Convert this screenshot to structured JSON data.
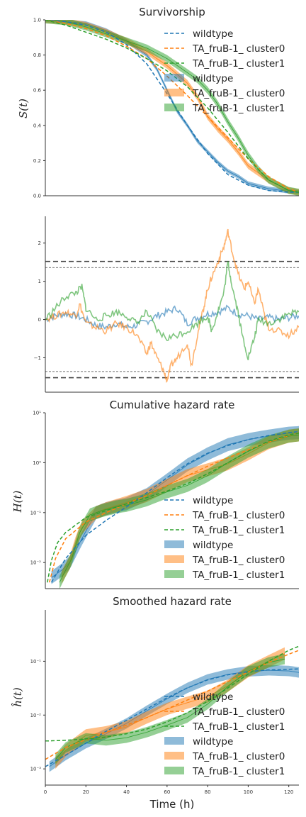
{
  "colors": {
    "wildtype": "#1f77b4",
    "cluster0": "#ff7f0e",
    "cluster1": "#2ca02c",
    "reference_lines": "#444444"
  },
  "legend_labels": [
    "wildtype",
    "TA_fruB-1_ cluster0",
    "TA_fruB-1_ cluster1"
  ],
  "shared_xaxis": {
    "label": "Time (h)",
    "xlim": [
      0,
      125
    ],
    "ticks": [
      "0",
      "20",
      "40",
      "60",
      "80",
      "100",
      "120"
    ]
  },
  "chart_data": [
    {
      "type": "line",
      "title": "Survivorship",
      "ylabel": "S(t)",
      "xlim": [
        0,
        125
      ],
      "ylim": [
        0,
        1.0
      ],
      "yticks": [
        "0.0",
        "0.2",
        "0.4",
        "0.6",
        "0.8",
        "1.0"
      ],
      "legend": "top-right",
      "series": [
        {
          "name": "wildtype",
          "style": "dashed-fit",
          "x": [
            0,
            10,
            20,
            30,
            40,
            50,
            60,
            70,
            80,
            90,
            100,
            110,
            120,
            125
          ],
          "values": [
            1.0,
            0.99,
            0.97,
            0.93,
            0.86,
            0.75,
            0.58,
            0.4,
            0.24,
            0.12,
            0.06,
            0.03,
            0.02,
            0.02
          ]
        },
        {
          "name": "TA_fruB-1_ cluster0",
          "style": "dashed-fit",
          "x": [
            0,
            10,
            20,
            30,
            40,
            50,
            60,
            70,
            80,
            90,
            100,
            110,
            120,
            125
          ],
          "values": [
            1.0,
            0.98,
            0.95,
            0.91,
            0.85,
            0.78,
            0.68,
            0.57,
            0.45,
            0.33,
            0.21,
            0.11,
            0.04,
            0.02
          ]
        },
        {
          "name": "TA_fruB-1_ cluster1",
          "style": "dashed-fit",
          "x": [
            0,
            10,
            20,
            30,
            40,
            50,
            60,
            70,
            80,
            90,
            100,
            110,
            120,
            125
          ],
          "values": [
            1.0,
            0.97,
            0.93,
            0.89,
            0.84,
            0.78,
            0.71,
            0.62,
            0.5,
            0.36,
            0.21,
            0.09,
            0.03,
            0.02
          ]
        },
        {
          "name": "wildtype",
          "style": "band",
          "x": [
            0,
            10,
            20,
            30,
            40,
            50,
            55,
            60,
            65,
            70,
            75,
            80,
            85,
            90,
            95,
            100,
            110,
            120,
            125
          ],
          "values": [
            1.0,
            0.99,
            0.98,
            0.94,
            0.88,
            0.8,
            0.72,
            0.6,
            0.48,
            0.4,
            0.31,
            0.25,
            0.19,
            0.14,
            0.11,
            0.07,
            0.04,
            0.025,
            0.02
          ],
          "band_halfwidth": 0.012
        },
        {
          "name": "TA_fruB-1_ cluster0",
          "style": "band",
          "x": [
            0,
            10,
            20,
            30,
            40,
            50,
            60,
            70,
            75,
            80,
            85,
            90,
            95,
            100,
            110,
            120,
            125
          ],
          "values": [
            1.0,
            0.99,
            0.97,
            0.93,
            0.88,
            0.82,
            0.74,
            0.64,
            0.56,
            0.45,
            0.38,
            0.32,
            0.25,
            0.17,
            0.09,
            0.03,
            0.02
          ],
          "band_halfwidth": 0.018
        },
        {
          "name": "TA_fruB-1_ cluster1",
          "style": "band",
          "x": [
            0,
            10,
            20,
            30,
            40,
            50,
            60,
            65,
            70,
            75,
            80,
            85,
            90,
            95,
            100,
            105,
            110,
            120,
            125
          ],
          "values": [
            1.0,
            0.99,
            0.96,
            0.92,
            0.88,
            0.84,
            0.78,
            0.74,
            0.7,
            0.66,
            0.6,
            0.52,
            0.42,
            0.33,
            0.23,
            0.15,
            0.09,
            0.03,
            0.02
          ],
          "band_halfwidth": 0.02
        }
      ]
    },
    {
      "type": "line",
      "title": "",
      "ylabel": "",
      "xlim": [
        0,
        125
      ],
      "ylim": [
        -1.9,
        2.7
      ],
      "yticks": [
        "−1",
        "0",
        "1",
        "2"
      ],
      "reference_lines": {
        "thick_dashed": [
          1.52,
          -1.52
        ],
        "thin_dashed": [
          1.36,
          -1.36
        ]
      },
      "series": [
        {
          "name": "wildtype",
          "x": [
            0,
            5,
            10,
            15,
            20,
            25,
            30,
            35,
            40,
            45,
            50,
            55,
            60,
            65,
            70,
            75,
            80,
            85,
            90,
            95,
            100,
            105,
            110,
            115,
            120,
            125
          ],
          "values": [
            0,
            0.1,
            0.15,
            0.1,
            0.0,
            -0.15,
            -0.2,
            -0.1,
            -0.2,
            -0.15,
            -0.05,
            0.1,
            0.2,
            0.3,
            -0.1,
            0.05,
            0.15,
            0.2,
            0.3,
            0.15,
            0.1,
            0.0,
            0.05,
            0.0,
            0.05,
            0.1
          ]
        },
        {
          "name": "TA_fruB-1_ cluster0",
          "x": [
            0,
            5,
            10,
            15,
            17,
            20,
            25,
            30,
            35,
            40,
            45,
            50,
            52,
            55,
            58,
            60,
            62,
            65,
            70,
            72,
            75,
            78,
            80,
            82,
            85,
            88,
            90,
            92,
            95,
            98,
            100,
            103,
            105,
            108,
            110,
            115,
            120,
            125
          ],
          "values": [
            0,
            0.1,
            0.2,
            0.1,
            0.4,
            -0.1,
            -0.2,
            -0.3,
            -0.1,
            -0.2,
            -0.4,
            -0.9,
            -0.6,
            -1.0,
            -1.3,
            -1.6,
            -1.2,
            -1.0,
            -0.6,
            -1.2,
            -0.4,
            0.3,
            0.8,
            1.1,
            1.5,
            1.9,
            2.3,
            1.8,
            1.2,
            0.8,
            1.0,
            0.4,
            0.8,
            0.1,
            -0.2,
            -0.3,
            -0.4,
            -0.2
          ]
        },
        {
          "name": "TA_fruB-1_ cluster1",
          "x": [
            0,
            5,
            10,
            15,
            18,
            20,
            25,
            30,
            35,
            40,
            45,
            50,
            55,
            60,
            65,
            70,
            75,
            80,
            82,
            85,
            88,
            90,
            92,
            95,
            97,
            100,
            103,
            105,
            110,
            115,
            120,
            125
          ],
          "values": [
            0,
            0.3,
            0.6,
            0.7,
            0.85,
            0.3,
            0.0,
            0.1,
            0.2,
            0.1,
            -0.1,
            0.2,
            -0.3,
            -0.5,
            -0.4,
            -0.3,
            -0.1,
            0.1,
            -0.3,
            0.2,
            0.7,
            1.5,
            0.9,
            0.2,
            -0.4,
            -1.0,
            -0.5,
            0.0,
            -0.1,
            0.0,
            0.15,
            0.2
          ]
        }
      ]
    },
    {
      "type": "line",
      "title": "Cumulative hazard rate",
      "ylabel": "H(t)",
      "xlim": [
        0,
        125
      ],
      "ylim": [
        0.003,
        10
      ],
      "yscale": "log",
      "yticks": [
        "10⁻²",
        "10⁻¹",
        "10⁰",
        "10¹"
      ],
      "legend": "lower-right",
      "series": [
        {
          "name": "wildtype",
          "style": "dashed-fit",
          "x": [
            3,
            10,
            20,
            30,
            40,
            50,
            60,
            70,
            80,
            90,
            100,
            110,
            120,
            125
          ],
          "values": [
            0.004,
            0.012,
            0.035,
            0.07,
            0.13,
            0.25,
            0.5,
            0.95,
            1.55,
            2.2,
            2.9,
            3.5,
            4.0,
            4.2
          ]
        },
        {
          "name": "TA_fruB-1_ cluster0",
          "style": "dashed-fit",
          "x": [
            2,
            5,
            10,
            20,
            30,
            40,
            50,
            60,
            70,
            80,
            90,
            100,
            110,
            120,
            125
          ],
          "values": [
            0.004,
            0.012,
            0.03,
            0.065,
            0.1,
            0.15,
            0.22,
            0.35,
            0.55,
            0.85,
            1.25,
            1.8,
            2.6,
            3.5,
            4.0
          ]
        },
        {
          "name": "TA_fruB-1_ cluster1",
          "style": "dashed-fit",
          "x": [
            1,
            3,
            6,
            10,
            20,
            30,
            40,
            50,
            60,
            70,
            80,
            90,
            100,
            110,
            120,
            125
          ],
          "values": [
            0.004,
            0.011,
            0.025,
            0.04,
            0.08,
            0.11,
            0.15,
            0.2,
            0.27,
            0.38,
            0.6,
            1.0,
            1.7,
            2.7,
            3.6,
            3.9
          ]
        },
        {
          "name": "wildtype",
          "style": "band",
          "x": [
            3,
            8,
            12,
            18,
            25,
            30,
            40,
            50,
            60,
            70,
            80,
            90,
            100,
            110,
            120,
            125
          ],
          "values": [
            0.005,
            0.007,
            0.01,
            0.03,
            0.1,
            0.12,
            0.15,
            0.23,
            0.45,
            0.9,
            1.5,
            2.3,
            2.9,
            3.4,
            3.9,
            4.0
          ],
          "band_factor": 1.35
        },
        {
          "name": "TA_fruB-1_ cluster0",
          "style": "band",
          "x": [
            8,
            12,
            15,
            18,
            25,
            30,
            40,
            50,
            60,
            70,
            80,
            90,
            100,
            110,
            120,
            125
          ],
          "values": [
            0.005,
            0.01,
            0.025,
            0.05,
            0.1,
            0.12,
            0.16,
            0.22,
            0.35,
            0.55,
            0.72,
            0.95,
            1.5,
            2.5,
            3.4,
            3.6
          ],
          "band_factor": 1.35
        },
        {
          "name": "TA_fruB-1_ cluster1",
          "style": "band",
          "x": [
            7,
            10,
            13,
            17,
            22,
            28,
            35,
            40,
            50,
            60,
            70,
            80,
            90,
            100,
            110,
            120,
            125
          ],
          "values": [
            0.004,
            0.007,
            0.012,
            0.04,
            0.09,
            0.11,
            0.13,
            0.14,
            0.18,
            0.26,
            0.35,
            0.55,
            1.0,
            1.7,
            2.6,
            3.4,
            3.6
          ],
          "band_factor": 1.35
        }
      ]
    },
    {
      "type": "line",
      "title": "Smoothed hazard rate",
      "ylabel": "ĥ(t)",
      "xlim": [
        0,
        125
      ],
      "ylim": [
        0.0005,
        0.9
      ],
      "yscale": "log",
      "yticks": [
        "10⁻³",
        "10⁻²",
        "10⁻¹"
      ],
      "legend": "lower-right",
      "series": [
        {
          "name": "wildtype",
          "style": "dashed-fit",
          "x": [
            0,
            10,
            20,
            30,
            40,
            50,
            60,
            70,
            80,
            90,
            100,
            110,
            120,
            125
          ],
          "values": [
            0.0011,
            0.0018,
            0.003,
            0.005,
            0.008,
            0.013,
            0.021,
            0.032,
            0.045,
            0.056,
            0.064,
            0.069,
            0.071,
            0.072
          ]
        },
        {
          "name": "TA_fruB-1_ cluster0",
          "style": "dashed-fit",
          "x": [
            0,
            10,
            20,
            30,
            40,
            50,
            60,
            70,
            80,
            90,
            100,
            110,
            120,
            125
          ],
          "values": [
            0.0015,
            0.0025,
            0.0035,
            0.0048,
            0.0065,
            0.009,
            0.013,
            0.019,
            0.028,
            0.042,
            0.063,
            0.095,
            0.135,
            0.16
          ]
        },
        {
          "name": "TA_fruB-1_ cluster1",
          "style": "dashed-fit",
          "x": [
            0,
            10,
            20,
            30,
            40,
            50,
            60,
            70,
            80,
            90,
            100,
            110,
            120,
            125
          ],
          "values": [
            0.0033,
            0.0034,
            0.0036,
            0.0039,
            0.0045,
            0.0055,
            0.0075,
            0.011,
            0.018,
            0.032,
            0.058,
            0.1,
            0.16,
            0.19
          ]
        },
        {
          "name": "wildtype",
          "style": "band",
          "x": [
            2,
            10,
            20,
            30,
            40,
            50,
            60,
            70,
            80,
            90,
            100,
            110,
            120,
            125
          ],
          "values": [
            0.0011,
            0.0018,
            0.003,
            0.0045,
            0.007,
            0.012,
            0.02,
            0.032,
            0.046,
            0.057,
            0.065,
            0.068,
            0.066,
            0.062
          ],
          "band_factor": 1.25
        },
        {
          "name": "TA_fruB-1_ cluster0",
          "style": "band",
          "x": [
            5,
            10,
            20,
            30,
            40,
            50,
            60,
            70,
            80,
            90,
            100,
            110,
            118
          ],
          "values": [
            0.0013,
            0.0022,
            0.0042,
            0.0048,
            0.006,
            0.009,
            0.013,
            0.017,
            0.022,
            0.035,
            0.065,
            0.1,
            0.14
          ],
          "band_factor": 1.3
        },
        {
          "name": "TA_fruB-1_ cluster1",
          "style": "band",
          "x": [
            5,
            10,
            20,
            30,
            40,
            50,
            60,
            70,
            80,
            90,
            100,
            110,
            118
          ],
          "values": [
            0.0015,
            0.0025,
            0.0037,
            0.0034,
            0.0038,
            0.0048,
            0.0065,
            0.009,
            0.016,
            0.034,
            0.065,
            0.095,
            0.11
          ],
          "band_factor": 1.25
        }
      ]
    }
  ]
}
